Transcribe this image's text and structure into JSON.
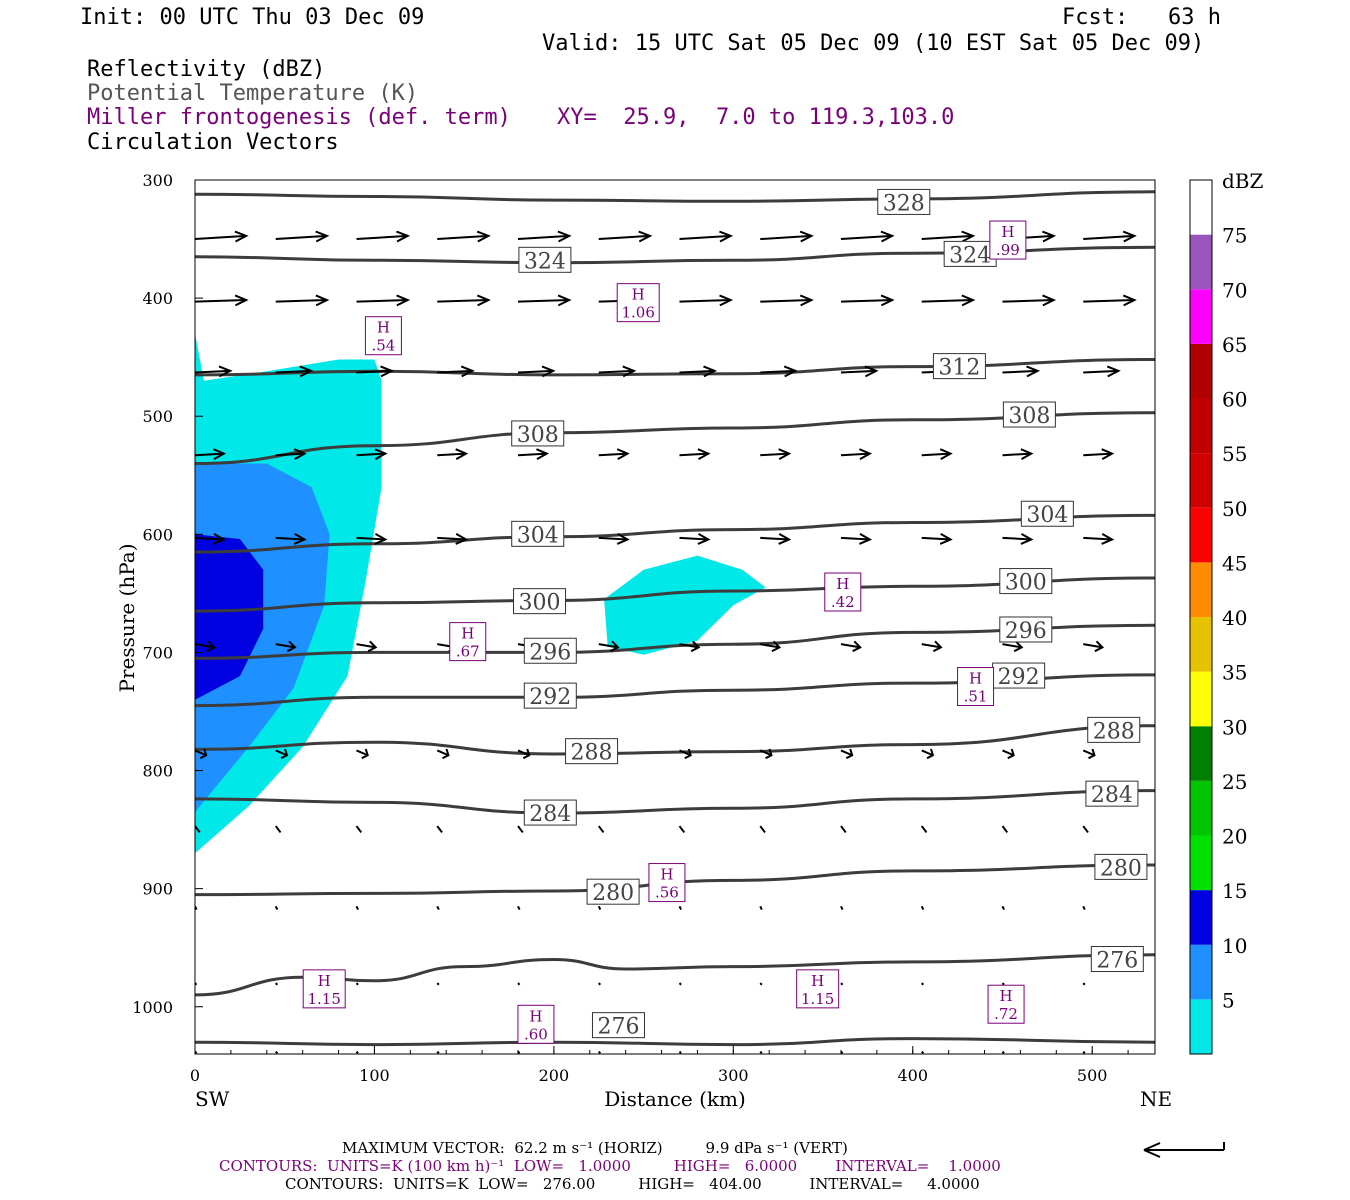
{
  "header": {
    "init": "Init: 00 UTC Thu 03 Dec 09",
    "fcst": "Fcst:   63 h",
    "valid": "Valid: 15 UTC Sat 05 Dec 09 (10 EST Sat 05 Dec 09)",
    "field1": "Reflectivity (dBZ)",
    "field2": "Potential Temperature (K)",
    "field3": "Miller frontogenesis (def. term)",
    "xy": "XY=  25.9,  7.0 to 119.3,103.0",
    "field4": "Circulation Vectors"
  },
  "colors": {
    "theta": "#3c3c3c",
    "front": "#7a007a",
    "vector": "#000000"
  },
  "chart_data": {
    "type": "cross-section",
    "xlabel": "Distance (km)",
    "ylabel": "Pressure (hPa)",
    "xlim": [
      0,
      535
    ],
    "ylim": [
      1040,
      300
    ],
    "x_ticks": [
      0,
      100,
      200,
      300,
      400,
      500
    ],
    "y_ticks": [
      300,
      400,
      500,
      600,
      700,
      800,
      900,
      1000
    ],
    "left_end_label": "SW",
    "right_end_label": "NE",
    "colorbar": {
      "title": "dBZ",
      "levels": [
        "5",
        "10",
        "15",
        "20",
        "25",
        "30",
        "35",
        "40",
        "45",
        "50",
        "55",
        "60",
        "65",
        "70",
        "75"
      ],
      "colors": [
        "#00e8e8",
        "#1e90ff",
        "#0000e0",
        "#00e000",
        "#00c400",
        "#008000",
        "#ffff00",
        "#e6c200",
        "#ff8c00",
        "#ff0000",
        "#d00000",
        "#c00000",
        "#b00000",
        "#ff00ff",
        "#9955bb",
        "#ffffff"
      ]
    },
    "theta_contours": [
      {
        "label": "328",
        "points": [
          [
            0,
            312
          ],
          [
            100,
            314
          ],
          [
            200,
            317
          ],
          [
            300,
            318
          ],
          [
            400,
            316
          ],
          [
            535,
            310
          ]
        ],
        "label_at": [
          395,
          319
        ]
      },
      {
        "label": "324",
        "points": [
          [
            0,
            365
          ],
          [
            100,
            368
          ],
          [
            200,
            370
          ],
          [
            300,
            368
          ],
          [
            400,
            362
          ],
          [
            535,
            357
          ]
        ],
        "label_at": [
          195,
          368
        ]
      },
      {
        "label": "324",
        "points": [
          [
            0,
            365
          ],
          [
            100,
            368
          ],
          [
            200,
            370
          ],
          [
            300,
            368
          ],
          [
            400,
            362
          ],
          [
            535,
            357
          ]
        ],
        "label_at": [
          432,
          363
        ]
      },
      {
        "label": "312",
        "points": [
          [
            0,
            465
          ],
          [
            100,
            462
          ],
          [
            200,
            465
          ],
          [
            300,
            464
          ],
          [
            400,
            458
          ],
          [
            535,
            452
          ]
        ],
        "label_at": [
          426,
          458
        ]
      },
      {
        "label": "308",
        "points": [
          [
            0,
            540
          ],
          [
            100,
            525
          ],
          [
            200,
            514
          ],
          [
            300,
            510
          ],
          [
            400,
            503
          ],
          [
            535,
            497
          ]
        ],
        "label_at": [
          191,
          515
        ]
      },
      {
        "label": "308",
        "points": [
          [
            0,
            540
          ],
          [
            100,
            525
          ],
          [
            200,
            514
          ],
          [
            300,
            510
          ],
          [
            400,
            503
          ],
          [
            535,
            497
          ]
        ],
        "label_at": [
          465,
          499
        ]
      },
      {
        "label": "304",
        "points": [
          [
            0,
            615
          ],
          [
            100,
            608
          ],
          [
            200,
            602
          ],
          [
            300,
            596
          ],
          [
            400,
            590
          ],
          [
            535,
            584
          ]
        ],
        "label_at": [
          191,
          600
        ]
      },
      {
        "label": "304",
        "points": [
          [
            0,
            615
          ],
          [
            100,
            608
          ],
          [
            200,
            602
          ],
          [
            300,
            596
          ],
          [
            400,
            590
          ],
          [
            535,
            584
          ]
        ],
        "label_at": [
          475,
          583
        ]
      },
      {
        "label": "300",
        "points": [
          [
            0,
            665
          ],
          [
            100,
            658
          ],
          [
            200,
            656
          ],
          [
            300,
            648
          ],
          [
            400,
            644
          ],
          [
            535,
            637
          ]
        ],
        "label_at": [
          192,
          657
        ]
      },
      {
        "label": "300",
        "points": [
          [
            0,
            665
          ],
          [
            100,
            658
          ],
          [
            200,
            656
          ],
          [
            300,
            648
          ],
          [
            400,
            644
          ],
          [
            535,
            637
          ]
        ],
        "label_at": [
          463,
          640
        ]
      },
      {
        "label": "296",
        "points": [
          [
            0,
            705
          ],
          [
            100,
            700
          ],
          [
            200,
            700
          ],
          [
            300,
            693
          ],
          [
            400,
            683
          ],
          [
            535,
            677
          ]
        ],
        "label_at": [
          198,
          699
        ]
      },
      {
        "label": "296",
        "points": [
          [
            0,
            705
          ],
          [
            100,
            700
          ],
          [
            200,
            700
          ],
          [
            300,
            693
          ],
          [
            400,
            683
          ],
          [
            535,
            677
          ]
        ],
        "label_at": [
          463,
          681
        ]
      },
      {
        "label": "292",
        "points": [
          [
            0,
            745
          ],
          [
            100,
            738
          ],
          [
            200,
            738
          ],
          [
            300,
            732
          ],
          [
            400,
            726
          ],
          [
            535,
            719
          ]
        ],
        "label_at": [
          198,
          737
        ]
      },
      {
        "label": "292",
        "points": [
          [
            0,
            745
          ],
          [
            100,
            738
          ],
          [
            200,
            738
          ],
          [
            300,
            732
          ],
          [
            400,
            726
          ],
          [
            535,
            719
          ]
        ],
        "label_at": [
          459,
          720
        ]
      },
      {
        "label": "288",
        "points": [
          [
            0,
            782
          ],
          [
            100,
            776
          ],
          [
            200,
            786
          ],
          [
            300,
            784
          ],
          [
            400,
            778
          ],
          [
            535,
            762
          ]
        ],
        "label_at": [
          221,
          784
        ]
      },
      {
        "label": "288",
        "points": [
          [
            0,
            782
          ],
          [
            100,
            776
          ],
          [
            200,
            786
          ],
          [
            300,
            784
          ],
          [
            400,
            778
          ],
          [
            535,
            762
          ]
        ],
        "label_at": [
          512,
          766
        ]
      },
      {
        "label": "284",
        "points": [
          [
            0,
            824
          ],
          [
            100,
            827
          ],
          [
            200,
            836
          ],
          [
            300,
            832
          ],
          [
            400,
            824
          ],
          [
            535,
            817
          ]
        ],
        "label_at": [
          198,
          836
        ]
      },
      {
        "label": "284",
        "points": [
          [
            0,
            824
          ],
          [
            100,
            827
          ],
          [
            200,
            836
          ],
          [
            300,
            832
          ],
          [
            400,
            824
          ],
          [
            535,
            817
          ]
        ],
        "label_at": [
          511,
          820
        ]
      },
      {
        "label": "280",
        "points": [
          [
            0,
            905
          ],
          [
            100,
            904
          ],
          [
            200,
            902
          ],
          [
            300,
            893
          ],
          [
            400,
            885
          ],
          [
            535,
            880
          ]
        ],
        "label_at": [
          233,
          903
        ]
      },
      {
        "label": "280",
        "points": [
          [
            0,
            905
          ],
          [
            100,
            904
          ],
          [
            200,
            902
          ],
          [
            300,
            893
          ],
          [
            400,
            885
          ],
          [
            535,
            880
          ]
        ],
        "label_at": [
          516,
          882
        ]
      },
      {
        "label": "276",
        "points": [
          [
            0,
            990
          ],
          [
            60,
            975
          ],
          [
            100,
            978
          ],
          [
            150,
            966
          ],
          [
            200,
            960
          ],
          [
            240,
            968
          ],
          [
            300,
            966
          ],
          [
            400,
            962
          ],
          [
            535,
            956
          ]
        ],
        "label_at": [
          514,
          960
        ]
      },
      {
        "label": "276",
        "points": [
          [
            0,
            1030
          ],
          [
            100,
            1032
          ],
          [
            200,
            1030
          ],
          [
            300,
            1032
          ],
          [
            400,
            1027
          ],
          [
            535,
            1030
          ]
        ],
        "label_at": [
          236,
          1016
        ]
      }
    ],
    "frontogenesis_maxima": [
      {
        "label": "H",
        "value": ".99",
        "x": 453,
        "p": 350
      },
      {
        "label": "H",
        "value": "1.06",
        "x": 247,
        "p": 403
      },
      {
        "label": "H",
        "value": ".54",
        "x": 105,
        "p": 431
      },
      {
        "label": "H",
        "value": ".42",
        "x": 361,
        "p": 648
      },
      {
        "label": "H",
        "value": ".67",
        "x": 152,
        "p": 690
      },
      {
        "label": "H",
        "value": ".51",
        "x": 435,
        "p": 728
      },
      {
        "label": "H",
        "value": ".56",
        "x": 263,
        "p": 894
      },
      {
        "label": "H",
        "value": "1.15",
        "x": 72,
        "p": 984
      },
      {
        "label": "H",
        "value": "1.15",
        "x": 347,
        "p": 984
      },
      {
        "label": "H",
        "value": ".72",
        "x": 452,
        "p": 997
      },
      {
        "label": "H",
        "value": ".60",
        "x": 190,
        "p": 1014
      }
    ],
    "vector_rows": [
      {
        "p": 350,
        "dx": 32,
        "dy": -2
      },
      {
        "p": 403,
        "dx": 32,
        "dy": -1
      },
      {
        "p": 463,
        "dx": 22,
        "dy": -1
      },
      {
        "p": 533,
        "dx": 18,
        "dy": -1
      },
      {
        "p": 603,
        "dx": 18,
        "dy": 1
      },
      {
        "p": 693,
        "dx": 12,
        "dy": 2
      },
      {
        "p": 783,
        "dx": 7,
        "dy": 3
      },
      {
        "p": 847,
        "dx": 3,
        "dy": 4
      },
      {
        "p": 915,
        "dx": 1,
        "dy": 2
      },
      {
        "p": 980,
        "dx": 1,
        "dy": 1
      },
      {
        "p": 1038,
        "dx": 1,
        "dy": 1
      }
    ],
    "vector_x": [
      0,
      45,
      90,
      135,
      180,
      225,
      270,
      315,
      360,
      405,
      450,
      495
    ]
  },
  "footer": {
    "max_vector": "MAXIMUM VECTOR:  62.2 m s⁻¹ (HORIZ)         9.9 dPa s⁻¹ (VERT)",
    "contours1": "CONTOURS:  UNITS=K (100 km h)⁻¹  LOW=   1.0000         HIGH=   6.0000        INTERVAL=    1.0000",
    "contours2": "CONTOURS:  UNITS=K  LOW=   276.00         HIGH=   404.00          INTERVAL=     4.0000"
  }
}
